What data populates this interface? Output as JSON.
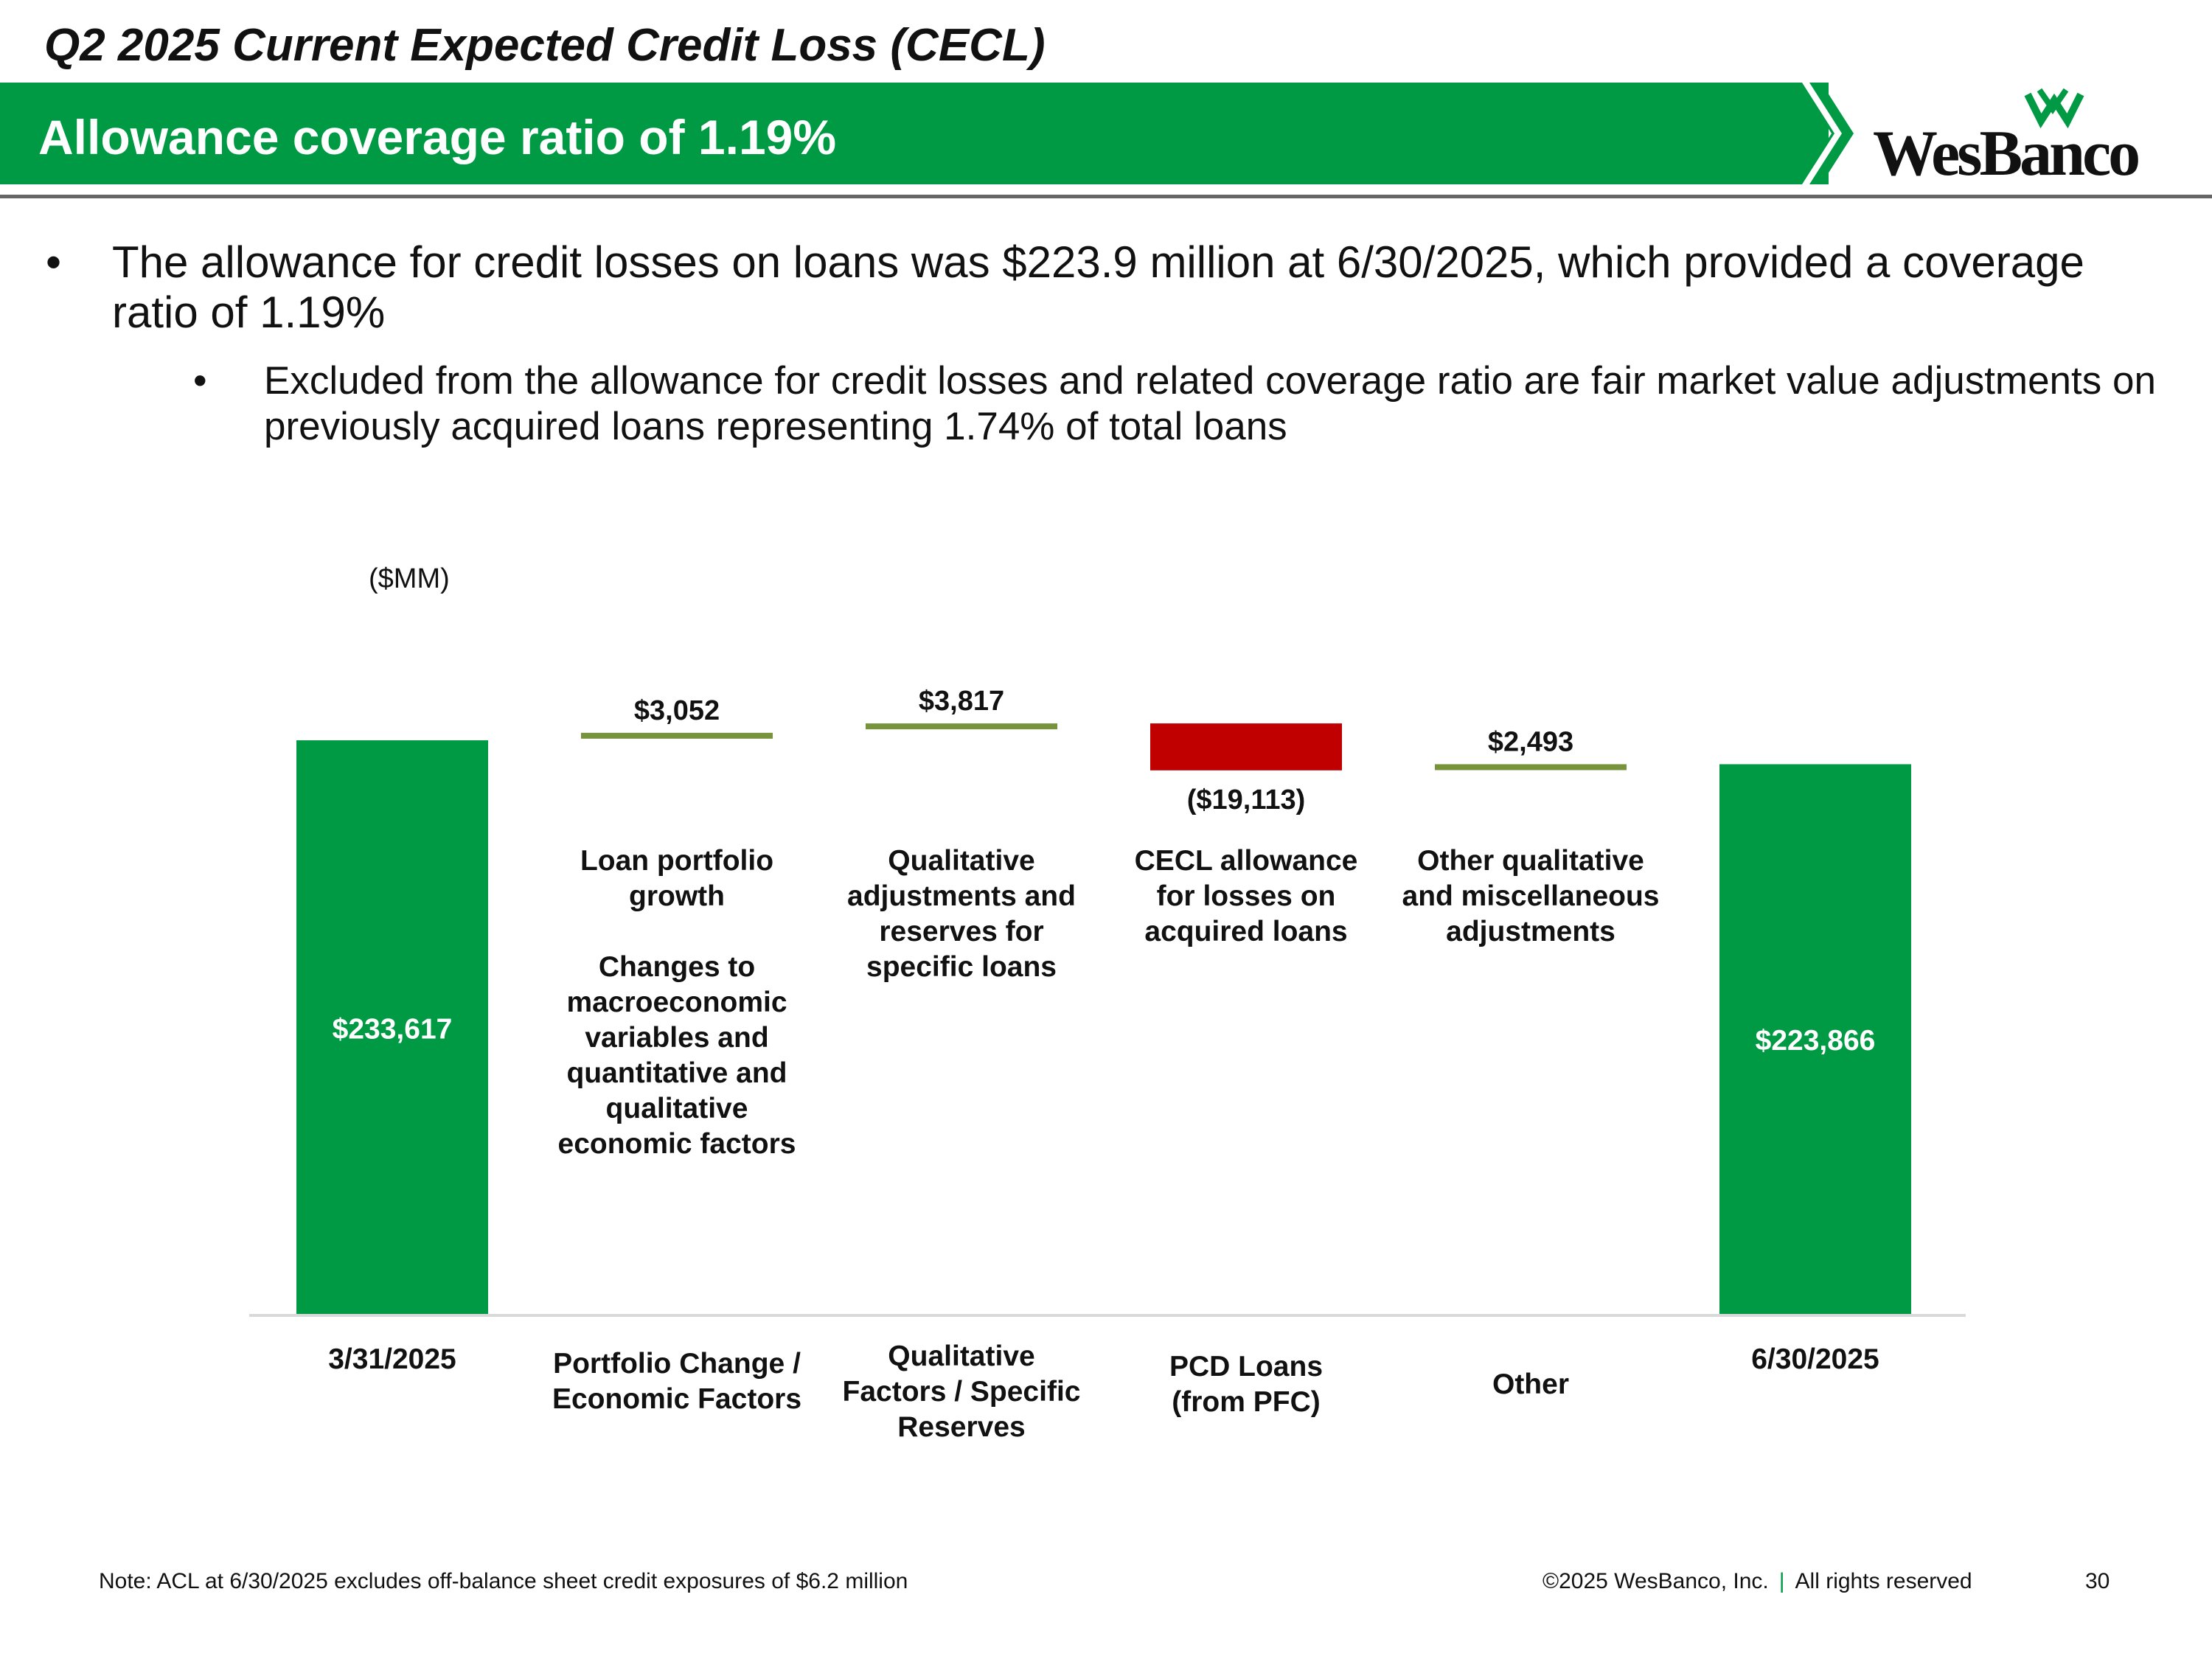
{
  "slide": {
    "title": "Q2 2025 Current Expected Credit Loss (CECL)",
    "banner": "Allowance coverage ratio of 1.19%",
    "logo_text": "WesBanco",
    "bullets": [
      "The allowance for credit losses on loans was $223.9 million at 6/30/2025, which provided a coverage ratio of 1.19%",
      "Excluded from the allowance for credit losses and related coverage ratio are fair market value adjustments on previously acquired loans representing 1.74% of total loans"
    ],
    "bullet_glyph": "•"
  },
  "chart_data": {
    "type": "bar",
    "subtype": "waterfall",
    "unit_label": "($MM)",
    "categories": [
      "3/31/2025",
      "Portfolio Change / Economic Factors",
      "Qualitative Factors / Specific Reserves",
      "PCD Loans (from PFC)",
      "Other",
      "6/30/2025"
    ],
    "steps": [
      {
        "category": "3/31/2025",
        "kind": "total",
        "value": 233617,
        "label": "$233,617"
      },
      {
        "category": "Portfolio Change / Economic Factors",
        "kind": "increase",
        "value": 3052,
        "label": "$3,052",
        "description": "Loan portfolio growth\n\nChanges to macroeconomic variables and quantitative and qualitative economic factors"
      },
      {
        "category": "Qualitative Factors / Specific Reserves",
        "kind": "increase",
        "value": 3817,
        "label": "$3,817",
        "description": "Qualitative adjustments and reserves for specific loans"
      },
      {
        "category": "PCD Loans (from PFC)",
        "kind": "decrease",
        "value": -19113,
        "label": "($19,113)",
        "description": "CECL allowance for losses on acquired loans"
      },
      {
        "category": "Other",
        "kind": "increase",
        "value": 2493,
        "label": "$2,493",
        "description": "Other qualitative and miscellaneous adjustments"
      },
      {
        "category": "6/30/2025",
        "kind": "total",
        "value": 223866,
        "label": "$223,866"
      }
    ],
    "colors": {
      "total": "#009a44",
      "increase": "#77933c",
      "decrease": "#c00000",
      "total_label": "#ffffff",
      "axis": "#d9d9d9"
    }
  },
  "footer": {
    "note": "Note: ACL at 6/30/2025 excludes off-balance sheet credit exposures of $6.2 million",
    "copyright": "©2025 WesBanco, Inc.",
    "separator": "|",
    "rights": "All rights reserved",
    "page": "30"
  }
}
